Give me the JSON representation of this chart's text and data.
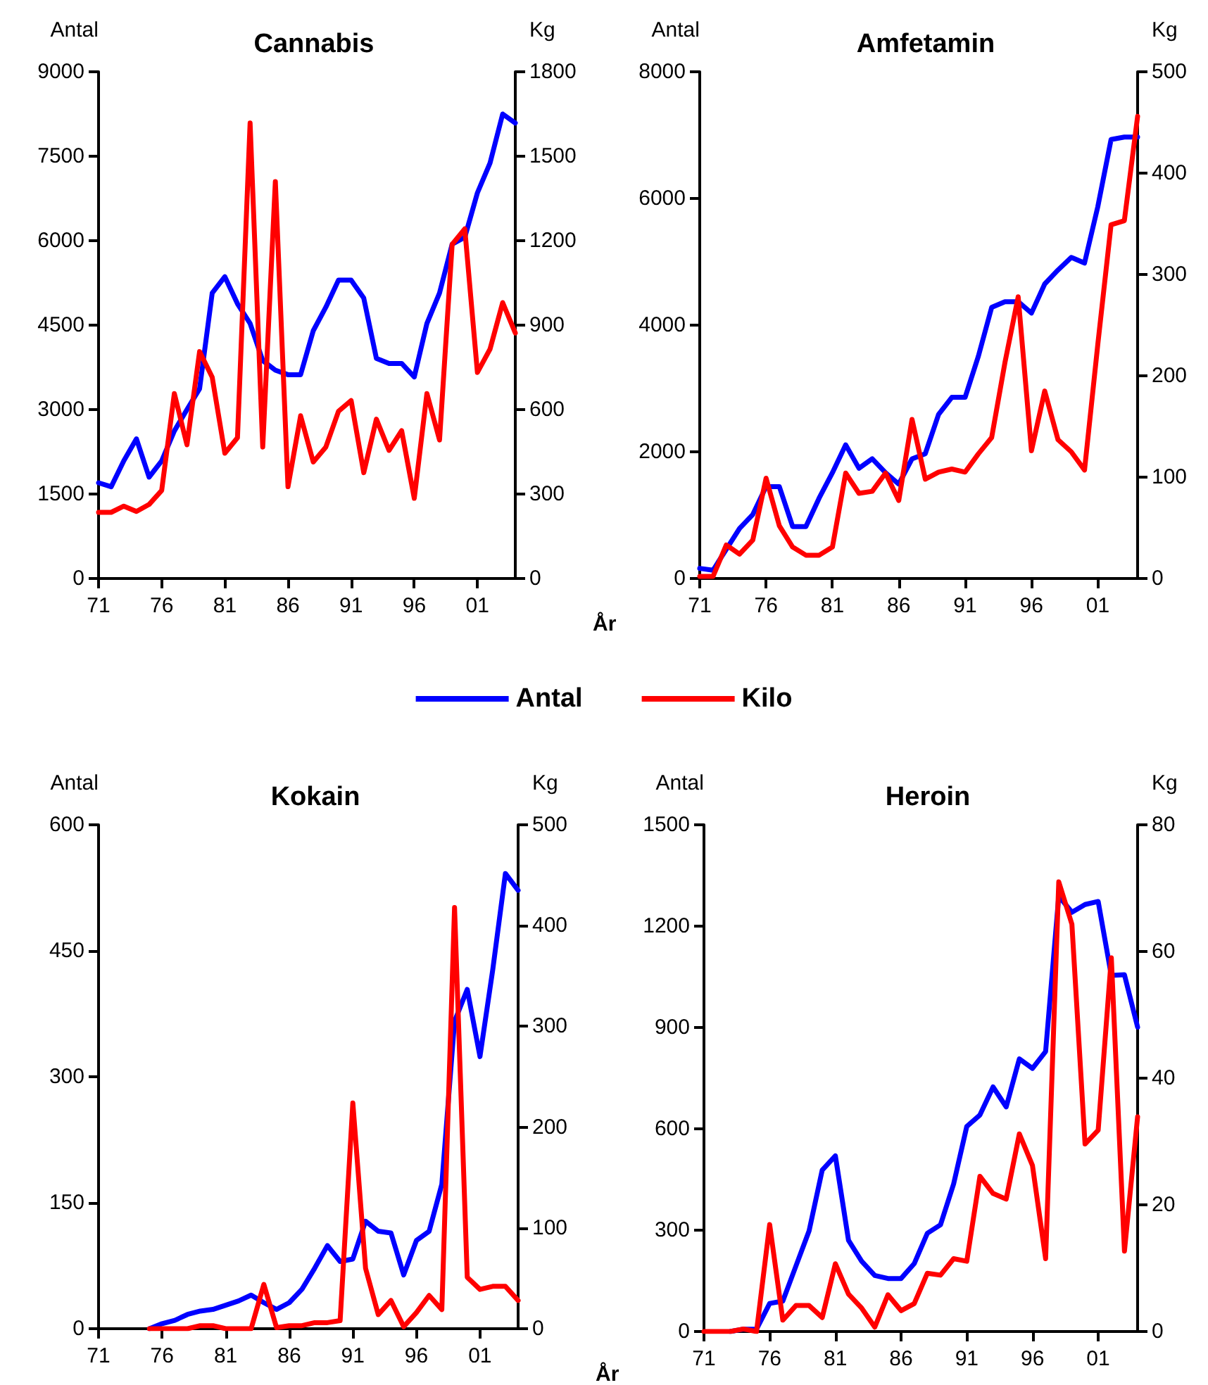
{
  "chart_data": [
    {
      "type": "line",
      "title": "Cannabis",
      "ylabel": "Antal",
      "y2label": "Kg",
      "xlabel": "År",
      "legend": "bottom",
      "grid": false,
      "marker": "none",
      "categories": [
        "71",
        null,
        null,
        null,
        null,
        "76",
        null,
        null,
        null,
        null,
        "81",
        null,
        null,
        null,
        null,
        "86",
        null,
        null,
        null,
        null,
        "91",
        null,
        null,
        null,
        null,
        "96",
        null,
        null,
        null,
        null,
        "01",
        null,
        null,
        null
      ],
      "series": [
        {
          "name": "Antal",
          "color": "#0000ff",
          "values": [
            1700,
            1630,
            2090,
            2480,
            1800,
            2090,
            2620,
            3000,
            3370,
            5070,
            5360,
            4880,
            4530,
            3870,
            3700,
            3620,
            3620,
            4400,
            4820,
            5300,
            5300,
            4980,
            3910,
            3820,
            3820,
            3580,
            4530,
            5070,
            5940,
            6060,
            6850,
            7380,
            8250,
            8090
          ]
        },
        {
          "name": "Kilo",
          "color": "#ff0000",
          "axis": "y2",
          "values": [
            235,
            235,
            257,
            238,
            263,
            313,
            657,
            475,
            806,
            715,
            445,
            500,
            1618,
            467,
            1410,
            326,
            578,
            414,
            467,
            594,
            632,
            376,
            566,
            455,
            525,
            285,
            657,
            492,
            1187,
            1242,
            732,
            815,
            980,
            872
          ]
        }
      ],
      "ylim": [
        0,
        9000
      ],
      "yticks": [
        0,
        1500,
        3000,
        4500,
        6000,
        7500,
        9000
      ],
      "y2lim": [
        0,
        1800
      ],
      "y2ticks": [
        0,
        300,
        600,
        900,
        1200,
        1500,
        1800
      ]
    },
    {
      "type": "line",
      "title": "Amfetamin",
      "ylabel": "Antal",
      "y2label": "Kg",
      "grid": false,
      "marker": "none",
      "categories": [
        "71",
        null,
        null,
        null,
        null,
        "76",
        null,
        null,
        null,
        null,
        "81",
        null,
        null,
        null,
        null,
        "86",
        null,
        null,
        null,
        null,
        "91",
        null,
        null,
        null,
        null,
        "96",
        null,
        null,
        null,
        null,
        "01",
        null,
        null,
        null
      ],
      "series": [
        {
          "color": "#0000ff",
          "values": [
            160,
            130,
            460,
            790,
            1010,
            1450,
            1450,
            820,
            820,
            1270,
            1670,
            2110,
            1740,
            1890,
            1670,
            1490,
            1890,
            1970,
            2590,
            2860,
            2860,
            3510,
            4280,
            4370,
            4370,
            4190,
            4650,
            4870,
            5070,
            4980,
            5870,
            6930,
            6970,
            6970
          ]
        },
        {
          "color": "#ff0000",
          "axis": "y2",
          "values": [
            2,
            2,
            33,
            24,
            38,
            99,
            52,
            31,
            23,
            23,
            31,
            104,
            84,
            86,
            104,
            77,
            157,
            98,
            105,
            108,
            105,
            123,
            139,
            213,
            278,
            126,
            185,
            137,
            125,
            107,
            231,
            349,
            353,
            456
          ]
        }
      ],
      "ylim": [
        0,
        8000
      ],
      "yticks": [
        0,
        2000,
        4000,
        6000,
        8000
      ],
      "y2lim": [
        0,
        500
      ],
      "y2ticks": [
        0,
        100,
        200,
        300,
        400,
        500
      ]
    },
    {
      "type": "line",
      "title": "Kokain",
      "ylabel": "Antal",
      "y2label": "Kg",
      "xlabel": "År",
      "grid": false,
      "marker": "none",
      "categories": [
        "71",
        null,
        null,
        null,
        null,
        "76",
        null,
        null,
        null,
        null,
        "81",
        null,
        null,
        null,
        null,
        "86",
        null,
        null,
        null,
        null,
        "91",
        null,
        null,
        null,
        null,
        "96",
        null,
        null,
        null,
        null,
        "01",
        null,
        null,
        null
      ],
      "series": [
        {
          "color": "#0000ff",
          "values": [
            null,
            null,
            null,
            null,
            0,
            6,
            10,
            17,
            21,
            23,
            28,
            33,
            40,
            31,
            23,
            31,
            47,
            72,
            99,
            80,
            83,
            128,
            116,
            114,
            64,
            105,
            116,
            172,
            366,
            404,
            324,
            427,
            542,
            522
          ]
        },
        {
          "color": "#ff0000",
          "axis": "y2",
          "values": [
            null,
            null,
            null,
            null,
            0,
            0,
            0,
            0,
            3,
            3,
            0,
            0,
            0,
            44,
            1,
            3,
            3,
            6,
            6,
            8,
            224,
            60,
            14,
            28,
            2,
            16,
            33,
            19,
            418,
            51,
            39,
            42,
            42,
            28
          ]
        }
      ],
      "ylim": [
        0,
        600
      ],
      "yticks": [
        0,
        150,
        300,
        450,
        600
      ],
      "y2lim": [
        0,
        500
      ],
      "y2ticks": [
        0,
        100,
        200,
        300,
        400,
        500
      ]
    },
    {
      "type": "line",
      "title": "Heroin",
      "ylabel": "Antal",
      "y2label": "Kg",
      "grid": false,
      "marker": "none",
      "categories": [
        "71",
        null,
        null,
        null,
        null,
        "76",
        null,
        null,
        null,
        null,
        "81",
        null,
        null,
        null,
        null,
        "86",
        null,
        null,
        null,
        null,
        "91",
        null,
        null,
        null,
        null,
        "96",
        null,
        null,
        null,
        null,
        "01",
        null,
        null,
        null
      ],
      "series": [
        {
          "color": "#0000ff",
          "values": [
            null,
            null,
            0,
            7,
            7,
            83,
            90,
            194,
            298,
            478,
            520,
            270,
            208,
            166,
            157,
            157,
            201,
            291,
            316,
            437,
            607,
            641,
            724,
            665,
            807,
            779,
            829,
            1289,
            1241,
            1264,
            1273,
            1054,
            1056,
            901
          ]
        },
        {
          "color": "#ff0000",
          "axis": "y2",
          "values": [
            0,
            0,
            0,
            0.4,
            0,
            16.9,
            1.8,
            4.1,
            4.1,
            2.2,
            10.7,
            5.9,
            3.7,
            0.7,
            5.8,
            3.3,
            4.4,
            9.2,
            8.9,
            11.5,
            11.1,
            24.5,
            21.8,
            20.9,
            31.2,
            26.2,
            11.5,
            71.0,
            64.3,
            29.6,
            31.8,
            59.0,
            12.7,
            33.9
          ]
        }
      ],
      "ylim": [
        0,
        1500
      ],
      "yticks": [
        0,
        300,
        600,
        900,
        1200,
        1500
      ],
      "y2lim": [
        0,
        80
      ],
      "y2ticks": [
        0,
        20,
        40,
        60,
        80
      ]
    }
  ]
}
